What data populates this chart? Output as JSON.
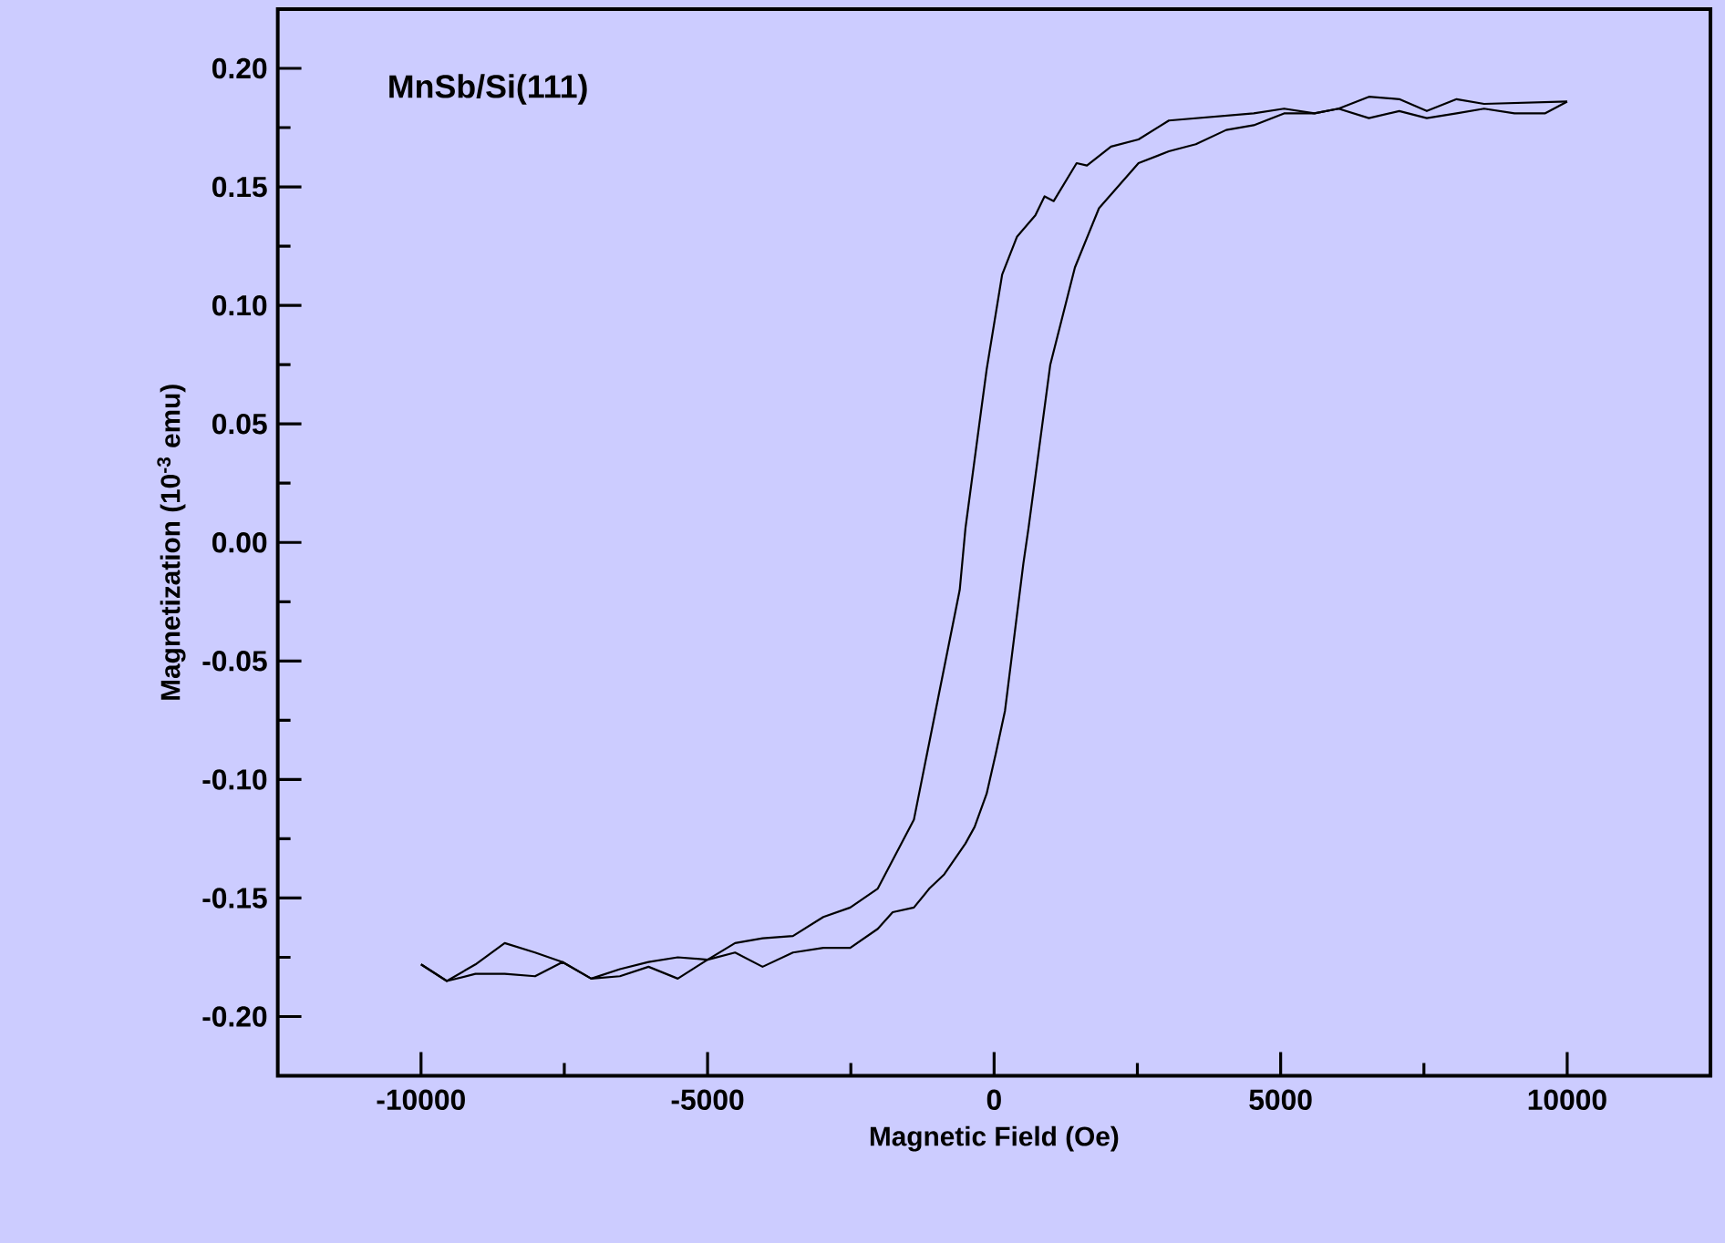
{
  "chart_data": {
    "type": "line",
    "xlabel": "Magnetic Field (Oe)",
    "ylabel": "Magnetization (10$^{-3}$ emu)",
    "annotations": [
      "MnSb/Si(111)"
    ],
    "xlim": [
      -12500,
      12500
    ],
    "xticks": [
      -10000,
      -5000,
      0,
      5000,
      10000
    ],
    "ylim": [
      -0.225,
      0.225
    ],
    "yticks": [
      {
        "value": -0.2,
        "label": "-0.20"
      },
      {
        "value": -0.15,
        "label": "-0.15"
      },
      {
        "value": -0.1,
        "label": "-0.10"
      },
      {
        "value": -0.05,
        "label": "-0.05"
      },
      {
        "value": 0,
        "label": "0.00"
      },
      {
        "value": 0.05,
        "label": "0.05"
      },
      {
        "value": 0.1,
        "label": "0.10"
      },
      {
        "value": 0.15,
        "label": "0.15"
      },
      {
        "value": 0.2,
        "label": "0.20"
      }
    ],
    "marker": "none",
    "line_style": "solid",
    "series": [
      {
        "color": "#000000",
        "x": [
          10000,
          8550,
          8070,
          7550,
          7070,
          6540,
          6010,
          5590,
          5060,
          4530,
          3050,
          2520,
          2040,
          1620,
          1440,
          1040,
          880,
          720,
          400,
          140,
          -130,
          -230,
          -500,
          -600,
          -980,
          -1400,
          -2030,
          -2510,
          -2980,
          -3510,
          -4040,
          -4520,
          -5000,
          -5520,
          -6030,
          -6530,
          -7030,
          -7530,
          -8010,
          -8540,
          -9050,
          -9550,
          -10000
        ],
        "values": [
          0.186,
          0.185,
          0.187,
          0.182,
          0.187,
          0.188,
          0.183,
          0.181,
          0.183,
          0.181,
          0.178,
          0.17,
          0.167,
          0.159,
          0.16,
          0.144,
          0.146,
          0.138,
          0.129,
          0.113,
          0.073,
          0.055,
          0.006,
          -0.02,
          -0.066,
          -0.117,
          -0.146,
          -0.154,
          -0.158,
          -0.166,
          -0.167,
          -0.169,
          -0.176,
          -0.175,
          -0.177,
          -0.18,
          -0.184,
          -0.177,
          -0.173,
          -0.169,
          -0.178,
          -0.185,
          -0.178
        ]
      },
      {
        "color": "#000000",
        "x": [
          -10000,
          -9550,
          -9050,
          -8540,
          -8010,
          -7530,
          -7030,
          -6530,
          -6030,
          -5520,
          -5000,
          -4520,
          -4040,
          -3510,
          -2980,
          -2510,
          -2030,
          -1770,
          -1400,
          -1130,
          -870,
          -500,
          -340,
          -130,
          30,
          190,
          350,
          510,
          600,
          980,
          1410,
          1830,
          2520,
          3050,
          3520,
          4050,
          4530,
          5060,
          5590,
          6010,
          6540,
          7070,
          7550,
          8070,
          8550,
          9080,
          9610,
          10000
        ],
        "values": [
          -0.178,
          -0.185,
          -0.182,
          -0.182,
          -0.183,
          -0.177,
          -0.184,
          -0.183,
          -0.179,
          -0.184,
          -0.176,
          -0.173,
          -0.179,
          -0.173,
          -0.171,
          -0.171,
          -0.163,
          -0.156,
          -0.154,
          -0.146,
          -0.14,
          -0.127,
          -0.12,
          -0.106,
          -0.089,
          -0.071,
          -0.04,
          -0.009,
          0.006,
          0.075,
          0.116,
          0.141,
          0.16,
          0.165,
          0.168,
          0.174,
          0.176,
          0.181,
          0.181,
          0.183,
          0.179,
          0.182,
          0.179,
          0.181,
          0.183,
          0.181,
          0.181,
          0.186
        ]
      }
    ]
  }
}
